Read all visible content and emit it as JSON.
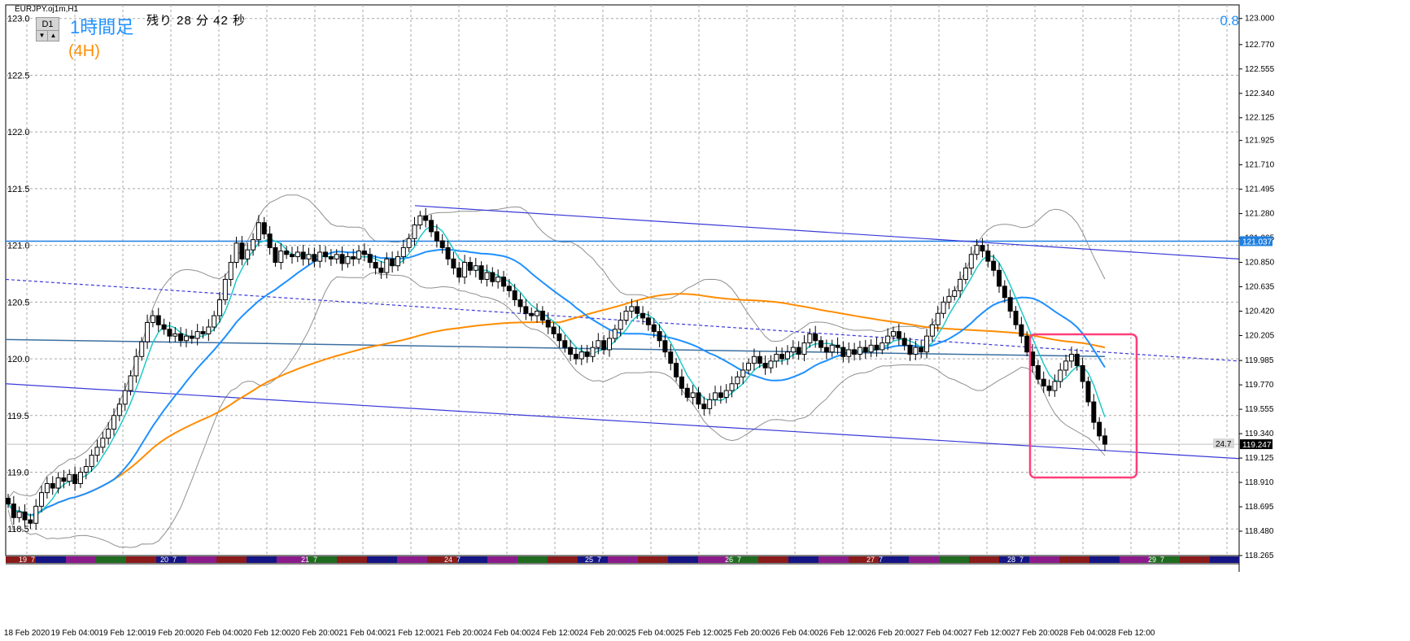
{
  "header": {
    "symbol": "EURJPY.oj1m,H1",
    "timeframe_button": "D1",
    "arrow_down": "▼",
    "arrow_up": "▲",
    "title_jp": "1時間足",
    "subtitle_jp": "(4H)",
    "remaining": "残り 28 分 42 秒",
    "indicator_value": "0.8"
  },
  "colors": {
    "background": "#ffffff",
    "grid": "#a8a8a8",
    "candle_up": "#ffffff",
    "candle_down": "#000000",
    "ma_short": "#20c8c8",
    "ma_mid": "#1e90ff",
    "ma_long": "#ff8c00",
    "bollinger": "#909090",
    "channel": "#3a3ad8",
    "level_line": "#1e7fe0",
    "highlight_box": "#ff3f7a"
  },
  "chart_data": {
    "type": "candlestick",
    "ylim": [
      118.265,
      123.12
    ],
    "right_axis_ticks": [
      "123.000",
      "122.770",
      "122.555",
      "122.340",
      "122.125",
      "121.925",
      "121.710",
      "121.495",
      "121.280",
      "121.065",
      "120.850",
      "120.635",
      "120.420",
      "120.205",
      "119.985",
      "119.770",
      "119.555",
      "119.340",
      "119.125",
      "118.910",
      "118.695",
      "118.480",
      "118.265"
    ],
    "left_axis_ticks": [
      "123.0",
      "122.5",
      "122.0",
      "121.5",
      "121.0",
      "120.5",
      "120.0",
      "119.5",
      "119.0",
      "118.5"
    ],
    "x_labels": [
      "18 Feb 2020",
      "19 Feb 04:00",
      "19 Feb 12:00",
      "19 Feb 20:00",
      "20 Feb 04:00",
      "20 Feb 12:00",
      "20 Feb 20:00",
      "21 Feb 04:00",
      "21 Feb 12:00",
      "21 Feb 20:00",
      "24 Feb 04:00",
      "24 Feb 12:00",
      "24 Feb 20:00",
      "25 Feb 04:00",
      "25 Feb 12:00",
      "25 Feb 20:00",
      "26 Feb 04:00",
      "26 Feb 12:00",
      "26 Feb 20:00",
      "27 Feb 04:00",
      "27 Feb 12:00",
      "27 Feb 20:00",
      "28 Feb 04:00",
      "28 Feb 12:00"
    ],
    "day_markers": [
      "19_7",
      "20_7",
      "21_7",
      "24_7",
      "25_7",
      "26_7",
      "27_7",
      "28_7",
      "29_7"
    ],
    "current_price": "119.247",
    "level_price": "121.037",
    "level_value": 121.037,
    "current_value": 119.247,
    "spread_label": "24.7",
    "closes": [
      118.72,
      118.6,
      118.65,
      118.58,
      118.55,
      118.7,
      118.82,
      118.9,
      118.86,
      118.95,
      118.92,
      118.98,
      118.9,
      119.0,
      119.05,
      119.15,
      119.22,
      119.3,
      119.38,
      119.5,
      119.6,
      119.72,
      119.85,
      120.02,
      120.15,
      120.32,
      120.38,
      120.3,
      120.26,
      120.2,
      120.22,
      120.16,
      120.2,
      120.18,
      120.24,
      120.22,
      120.28,
      120.38,
      120.52,
      120.7,
      120.85,
      121.02,
      120.88,
      120.96,
      121.05,
      121.2,
      121.1,
      120.98,
      120.85,
      120.95,
      120.92,
      120.9,
      120.94,
      120.88,
      120.92,
      120.86,
      120.94,
      120.9,
      120.88,
      120.92,
      120.84,
      120.9,
      120.88,
      120.95,
      120.92,
      120.85,
      120.8,
      120.76,
      120.88,
      120.82,
      120.9,
      120.98,
      121.06,
      121.18,
      121.26,
      121.22,
      121.12,
      121.04,
      120.98,
      120.88,
      120.8,
      120.72,
      120.85,
      120.78,
      120.82,
      120.7,
      120.76,
      120.68,
      120.72,
      120.64,
      120.6,
      120.52,
      120.46,
      120.4,
      120.38,
      120.42,
      120.34,
      120.28,
      120.22,
      120.16,
      120.1,
      120.04,
      120.0,
      120.06,
      120.02,
      120.1,
      120.16,
      120.08,
      120.18,
      120.26,
      120.34,
      120.42,
      120.46,
      120.4,
      120.36,
      120.3,
      120.24,
      120.16,
      120.06,
      119.96,
      119.84,
      119.74,
      119.66,
      119.7,
      119.6,
      119.56,
      119.64,
      119.7,
      119.66,
      119.72,
      119.78,
      119.84,
      119.9,
      119.96,
      120.02,
      119.96,
      119.92,
      119.98,
      120.04,
      120.0,
      120.06,
      120.1,
      120.04,
      120.14,
      120.22,
      120.16,
      120.1,
      120.06,
      120.12,
      120.1,
      120.02,
      120.08,
      120.04,
      120.1,
      120.06,
      120.12,
      120.08,
      120.14,
      120.2,
      120.24,
      120.18,
      120.12,
      120.04,
      120.1,
      120.06,
      120.2,
      120.3,
      120.4,
      120.5,
      120.55,
      120.6,
      120.7,
      120.8,
      120.92,
      121.0,
      120.95,
      120.86,
      120.78,
      120.64,
      120.54,
      120.42,
      120.3,
      120.2,
      120.06,
      119.94,
      119.82,
      119.76,
      119.72,
      119.8,
      119.9,
      119.98,
      120.04,
      119.94,
      119.8,
      119.62,
      119.44,
      119.32,
      119.247
    ]
  }
}
